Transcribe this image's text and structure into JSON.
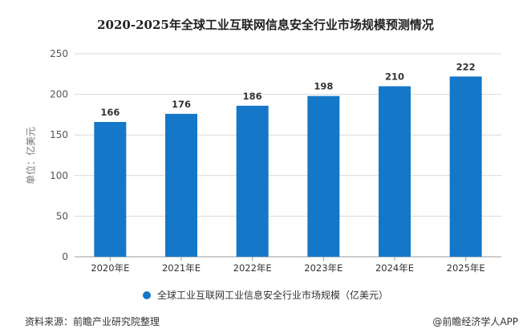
{
  "chart_data": {
    "type": "bar",
    "title": "2020-2025年全球工业互联网信息安全行业市场规模预测情况",
    "ylabel": "单位：亿美元",
    "xlabel": "",
    "categories": [
      "2020年E",
      "2021年E",
      "2022年E",
      "2023年E",
      "2024年E",
      "2025年E"
    ],
    "series": [
      {
        "name": "全球工业互联网工业信息安全行业市场规模（亿美元）",
        "values": [
          166,
          176,
          186,
          198,
          210,
          222
        ]
      }
    ],
    "ylim": [
      0,
      250
    ],
    "yticks": [
      0,
      50,
      100,
      150,
      200,
      250
    ],
    "grid": true,
    "legend": "bottom",
    "colors": {
      "bar": "#1577c7",
      "grid": "#d9d9d9"
    }
  },
  "source": "资料来源：前瞻产业研究院整理",
  "credit": "@前瞻经济学人APP"
}
